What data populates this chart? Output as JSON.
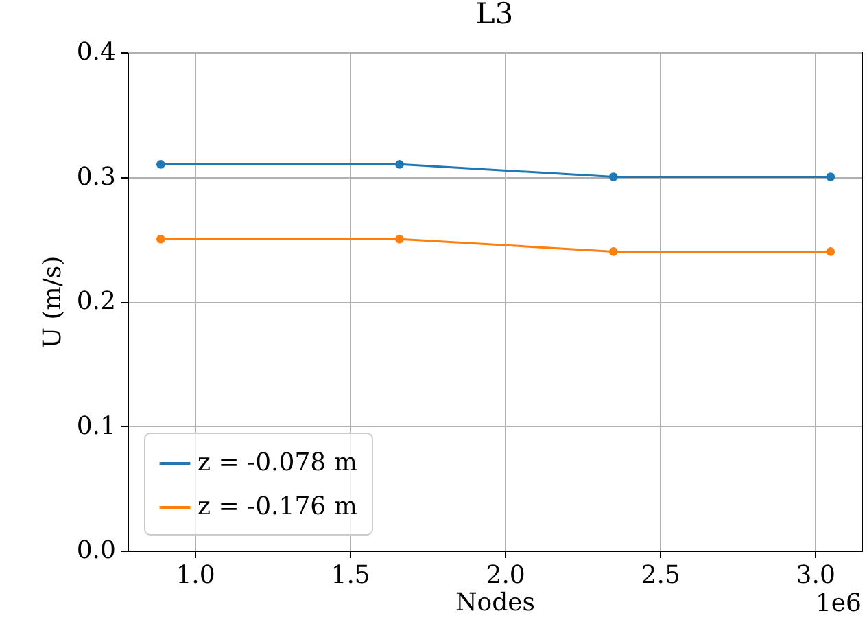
{
  "chart_data": {
    "type": "line",
    "title": "L3",
    "xlabel": "Nodes",
    "ylabel": "U (m/s)",
    "x": [
      0.89,
      1.66,
      2.35,
      3.05
    ],
    "series": [
      {
        "name": "z = -0.078 m",
        "color": "#1f77b4",
        "values": [
          0.31,
          0.31,
          0.3,
          0.3
        ]
      },
      {
        "name": "z = -0.176 m",
        "color": "#ff7f0e",
        "values": [
          0.25,
          0.25,
          0.24,
          0.24
        ]
      }
    ],
    "xlim": [
      0.783,
      3.15
    ],
    "xticks": [
      {
        "value": 1,
        "label": "1.0"
      },
      1.5,
      {
        "value": 2,
        "label": "2.0"
      },
      2.5,
      {
        "value": 3,
        "label": "3.0"
      }
    ],
    "ylim": [
      0,
      0.4
    ],
    "yticks": [
      {
        "value": 0,
        "label": "0.0"
      },
      0.1,
      0.2,
      0.3,
      0.4
    ],
    "annotations": [
      "1e6"
    ],
    "grid": true,
    "legend": "bottom left",
    "marker": "circle",
    "line_style": "solid"
  }
}
